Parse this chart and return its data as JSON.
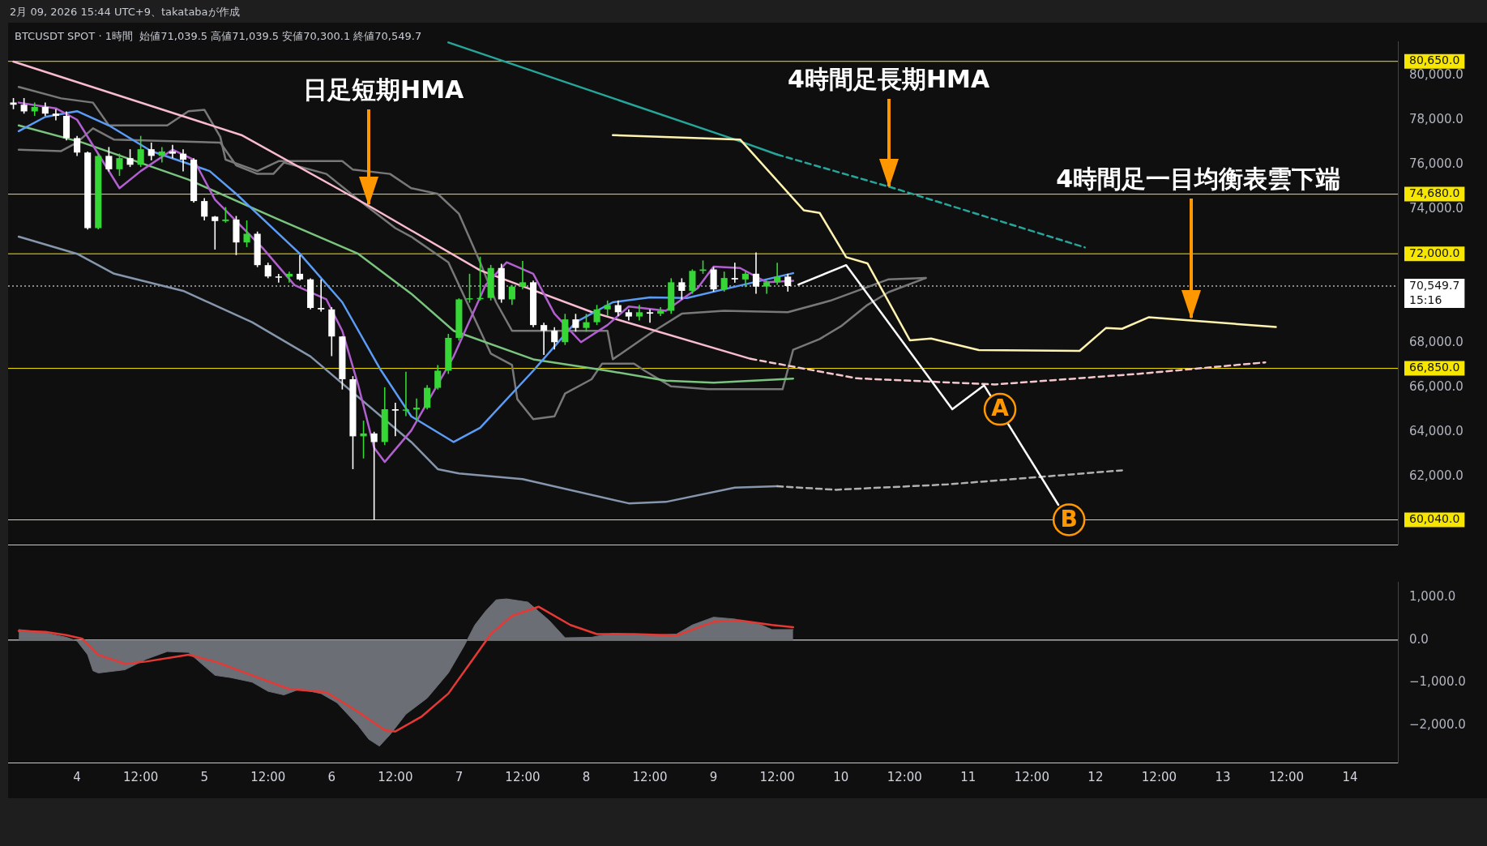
{
  "chart_data": [
    {
      "type": "candlestick",
      "title": "2月 09, 2026 15:44 UTC+9、takatabaが作成",
      "subtitle": "BTCUSDT SPOT · 1時間  始値71,039.5 高値71,039.5 安値70,300.1 終値70,549.7",
      "x": [
        "2026-02-03T12:00",
        "2026-02-03T14:00",
        "2026-02-03T16:00",
        "2026-02-03T18:00",
        "2026-02-03T20:00",
        "2026-02-03T22:00",
        "2026-02-04T00:00",
        "2026-02-04T02:00",
        "2026-02-04T04:00",
        "2026-02-04T06:00",
        "2026-02-04T08:00",
        "2026-02-04T10:00",
        "2026-02-04T12:00",
        "2026-02-04T14:00",
        "2026-02-04T16:00",
        "2026-02-04T18:00",
        "2026-02-04T20:00",
        "2026-02-04T22:00",
        "2026-02-05T00:00",
        "2026-02-05T02:00",
        "2026-02-05T04:00",
        "2026-02-05T06:00",
        "2026-02-05T08:00",
        "2026-02-05T10:00",
        "2026-02-05T12:00",
        "2026-02-05T14:00",
        "2026-02-05T16:00",
        "2026-02-05T18:00",
        "2026-02-05T20:00",
        "2026-02-05T22:00",
        "2026-02-06T00:00",
        "2026-02-06T02:00",
        "2026-02-06T04:00",
        "2026-02-06T06:00",
        "2026-02-06T08:00",
        "2026-02-06T10:00",
        "2026-02-06T12:00",
        "2026-02-06T14:00",
        "2026-02-06T16:00",
        "2026-02-06T18:00",
        "2026-02-06T20:00",
        "2026-02-06T22:00",
        "2026-02-07T00:00",
        "2026-02-07T02:00",
        "2026-02-07T04:00",
        "2026-02-07T06:00",
        "2026-02-07T08:00",
        "2026-02-07T10:00",
        "2026-02-07T12:00",
        "2026-02-07T14:00",
        "2026-02-07T16:00",
        "2026-02-07T18:00",
        "2026-02-07T20:00",
        "2026-02-07T22:00",
        "2026-02-08T00:00",
        "2026-02-08T02:00",
        "2026-02-08T04:00",
        "2026-02-08T06:00",
        "2026-02-08T08:00",
        "2026-02-08T10:00",
        "2026-02-08T12:00",
        "2026-02-08T14:00",
        "2026-02-08T16:00",
        "2026-02-08T18:00",
        "2026-02-08T20:00",
        "2026-02-08T22:00",
        "2026-02-09T00:00",
        "2026-02-09T02:00",
        "2026-02-09T04:00",
        "2026-02-09T06:00",
        "2026-02-09T08:00",
        "2026-02-09T10:00",
        "2026-02-09T12:00",
        "2026-02-09T14:00"
      ],
      "ohlc": [
        [
          78800,
          79000,
          78500,
          78700
        ],
        [
          78700,
          79000,
          78300,
          78400
        ],
        [
          78400,
          78800,
          78200,
          78600
        ],
        [
          78600,
          78800,
          78200,
          78300
        ],
        [
          78300,
          78500,
          78000,
          78200
        ],
        [
          78200,
          78400,
          77100,
          77200
        ],
        [
          77200,
          77300,
          76400,
          76550
        ],
        [
          76550,
          76600,
          73090,
          73150
        ],
        [
          73150,
          76500,
          73100,
          76400
        ],
        [
          76400,
          76800,
          75700,
          75800
        ],
        [
          75800,
          76500,
          75500,
          76300
        ],
        [
          76300,
          76700,
          75900,
          76000
        ],
        [
          76000,
          77300,
          75900,
          76700
        ],
        [
          76700,
          77000,
          76200,
          76400
        ],
        [
          76400,
          76800,
          76100,
          76600
        ],
        [
          76600,
          76900,
          76300,
          76500
        ],
        [
          76500,
          76700,
          75700,
          76230
        ],
        [
          76230,
          76300,
          74300,
          74370
        ],
        [
          74370,
          74500,
          73500,
          73670
        ],
        [
          73670,
          73700,
          72190,
          73470
        ],
        [
          73470,
          74100,
          73400,
          73540
        ],
        [
          73540,
          73700,
          71940,
          72510
        ],
        [
          72510,
          73500,
          72300,
          72900
        ],
        [
          72900,
          73000,
          71400,
          71490
        ],
        [
          71490,
          71600,
          70900,
          70980
        ],
        [
          70980,
          71100,
          70700,
          70975
        ],
        [
          70975,
          71200,
          70700,
          71100
        ],
        [
          71100,
          71940,
          70800,
          70850
        ],
        [
          70850,
          70900,
          69500,
          69565
        ],
        [
          69565,
          70850,
          69400,
          69500
        ],
        [
          69500,
          69600,
          67400,
          68283
        ],
        [
          68283,
          68300,
          65900,
          66360
        ],
        [
          66360,
          66500,
          62320,
          63796
        ],
        [
          63796,
          64500,
          62800,
          63924
        ],
        [
          63924,
          64000,
          60040,
          63539
        ],
        [
          63539,
          66000,
          63400,
          65014
        ],
        [
          65014,
          65300,
          63800,
          64950
        ],
        [
          64950,
          66700,
          64700,
          65000
        ],
        [
          65000,
          65500,
          64500,
          65080
        ],
        [
          65080,
          66100,
          65000,
          65975
        ],
        [
          65975,
          67000,
          65900,
          66744
        ],
        [
          66744,
          68400,
          66600,
          68220
        ],
        [
          68220,
          70000,
          68100,
          69950
        ],
        [
          69950,
          71100,
          69800,
          70000
        ],
        [
          70000,
          71870,
          69900,
          70014
        ],
        [
          70014,
          71500,
          69900,
          71360
        ],
        [
          71360,
          71550,
          69800,
          69950
        ],
        [
          69950,
          70600,
          69700,
          70526
        ],
        [
          70526,
          71680,
          70400,
          70719
        ],
        [
          70719,
          70800,
          68700,
          68796
        ],
        [
          68796,
          68900,
          67450,
          68539
        ],
        [
          68539,
          68700,
          67700,
          68027
        ],
        [
          68027,
          69300,
          67900,
          69052
        ],
        [
          69052,
          69300,
          68500,
          68667
        ],
        [
          68667,
          69300,
          68500,
          68924
        ],
        [
          68924,
          69700,
          68800,
          69501
        ],
        [
          69501,
          69900,
          69200,
          69693
        ],
        [
          69693,
          69900,
          69200,
          69373
        ],
        [
          69373,
          69500,
          69000,
          69180
        ],
        [
          69180,
          69700,
          69000,
          69373
        ],
        [
          69373,
          69500,
          68900,
          69308
        ],
        [
          69308,
          69600,
          69200,
          69437
        ],
        [
          69437,
          70900,
          69300,
          70719
        ],
        [
          70719,
          70900,
          69950,
          70334
        ],
        [
          70334,
          71300,
          70200,
          71231
        ],
        [
          71231,
          71700,
          71100,
          71296
        ],
        [
          71296,
          71400,
          70300,
          70398
        ],
        [
          70398,
          71200,
          70300,
          70911
        ],
        [
          70911,
          71600,
          70700,
          70847
        ],
        [
          70847,
          71200,
          70500,
          71103
        ],
        [
          71103,
          72060,
          70200,
          70526
        ],
        [
          70526,
          70800,
          70200,
          70719
        ],
        [
          70719,
          71600,
          70600,
          70975
        ],
        [
          70975,
          71100,
          70300,
          70550
        ]
      ],
      "colors": [
        "#ffffff",
        "#ffffff",
        "#36d636",
        "#ffffff",
        "#ffffff",
        "#ffffff",
        "#ffffff",
        "#ffffff",
        "#36d636",
        "#ffffff",
        "#36d636",
        "#ffffff",
        "#36d636",
        "#ffffff",
        "#36d636",
        "#ffffff",
        "#ffffff",
        "#ffffff",
        "#ffffff",
        "#ffffff",
        "#36d636",
        "#ffffff",
        "#36d636",
        "#ffffff",
        "#ffffff",
        "#ffffff",
        "#36d636",
        "#ffffff",
        "#ffffff",
        "#ffffff",
        "#ffffff",
        "#ffffff",
        "#ffffff",
        "#36d636",
        "#ffffff",
        "#36d636",
        "#ffffff",
        "#36d636",
        "#36d636",
        "#36d636",
        "#36d636",
        "#36d636",
        "#36d636",
        "#36d636",
        "#36d636",
        "#36d636",
        "#ffffff",
        "#36d636",
        "#36d636",
        "#ffffff",
        "#ffffff",
        "#ffffff",
        "#36d636",
        "#ffffff",
        "#36d636",
        "#36d636",
        "#36d636",
        "#ffffff",
        "#ffffff",
        "#36d636",
        "#ffffff",
        "#36d636",
        "#36d636",
        "#ffffff",
        "#36d636",
        "#36d636",
        "#ffffff",
        "#36d636",
        "#ffffff",
        "#36d636",
        "#ffffff",
        "#36d636",
        "#36d636",
        "#ffffff"
      ],
      "series": [
        {
          "type": "line",
          "color": "#787878",
          "x": [
            "2026-02-03T13:00",
            "2026-02-03T21:00",
            "2026-02-04T03:00",
            "2026-02-04T06:00",
            "2026-02-04T17:00",
            "2026-02-04T21:00",
            "2026-02-05T00:00",
            "2026-02-05T03:00",
            "2026-02-05T04:00",
            "2026-02-05T10:00",
            "2026-02-05T14:00",
            "2026-02-06T02:00",
            "2026-02-06T04:00",
            "2026-02-06T11:00",
            "2026-02-06T15:00",
            "2026-02-06T20:00",
            "2026-02-07T00:00",
            "2026-02-07T04:00",
            "2026-02-07T07:00",
            "2026-02-07T10:00",
            "2026-02-08T04:00",
            "2026-02-08T05:00",
            "2026-02-08T12:00",
            "2026-02-08T18:00",
            "2026-02-09T02:00",
            "2026-02-09T14:00",
            "2026-02-09T22:00",
            "2026-02-10T09:00",
            "2026-02-10T16:00"
          ],
          "values": [
            79500,
            78987,
            78795,
            77770,
            77770,
            78410,
            78475,
            77257,
            76231,
            75718,
            76167,
            76167,
            75782,
            75590,
            74949,
            74693,
            73795,
            71616,
            69821,
            68539,
            68539,
            67257,
            68411,
            69308,
            69437,
            69373,
            69892,
            70853,
            70911
          ]
        },
        {
          "type": "line",
          "color": "#787878",
          "x": [
            "2026-02-03T13:00",
            "2026-02-03T21:00",
            "2026-02-04T00:00",
            "2026-02-04T03:00",
            "2026-02-04T07:00",
            "2026-02-05T03:00",
            "2026-02-05T06:00",
            "2026-02-05T10:00",
            "2026-02-05T13:00",
            "2026-02-05T15:00",
            "2026-02-05T23:00",
            "2026-02-06T05:00",
            "2026-02-06T12:00",
            "2026-02-06T15:00",
            "2026-02-06T22:00",
            "2026-02-07T06:00",
            "2026-02-07T10:00",
            "2026-02-07T11:00",
            "2026-02-07T14:00",
            "2026-02-07T18:00",
            "2026-02-07T20:00",
            "2026-02-08T01:00",
            "2026-02-08T03:00",
            "2026-02-08T09:00",
            "2026-02-08T11:00",
            "2026-02-08T16:00",
            "2026-02-08T23:00",
            "2026-02-09T13:00",
            "2026-02-09T15:00",
            "2026-02-09T20:00",
            "2026-02-10T00:00",
            "2026-02-10T05:00",
            "2026-02-10T09:00",
            "2026-02-10T16:00"
          ],
          "values": [
            76680,
            76616,
            77000,
            77641,
            77129,
            77000,
            75975,
            75590,
            75590,
            76103,
            75590,
            74436,
            73154,
            72770,
            71616,
            67514,
            67001,
            65463,
            64565,
            64693,
            65719,
            66360,
            67065,
            67065,
            66744,
            66040,
            65911,
            65911,
            67683,
            68170,
            68740,
            69700,
            70277,
            70911
          ]
        },
        {
          "type": "line",
          "color": "#7bc47f",
          "x": [
            "2026-02-03T13:00",
            "2026-02-04T01:00",
            "2026-02-04T21:00",
            "2026-02-05T14:00",
            "2026-02-06T05:00",
            "2026-02-06T15:00",
            "2026-02-06T23:00",
            "2026-02-07T14:00",
            "2026-02-08T04:00",
            "2026-02-08T15:00",
            "2026-02-09T00:00",
            "2026-02-09T15:00"
          ],
          "values": [
            77770,
            77000,
            75334,
            73539,
            72000,
            70206,
            68539,
            67257,
            66744,
            66296,
            66206,
            66386
          ]
        },
        {
          "type": "line",
          "color": "#8596ad",
          "x": [
            "2026-02-03T13:00",
            "2026-02-04T00:00",
            "2026-02-04T07:00",
            "2026-02-04T20:00",
            "2026-02-05T09:00",
            "2026-02-05T20:00",
            "2026-02-06T15:00",
            "2026-02-06T20:00",
            "2026-02-07T00:00",
            "2026-02-07T12:00",
            "2026-02-08T08:00",
            "2026-02-08T15:00",
            "2026-02-09T04:00",
            "2026-02-09T12:00"
          ],
          "values": [
            72770,
            72000,
            71103,
            70334,
            68924,
            67386,
            63539,
            62321,
            62129,
            61873,
            60783,
            60847,
            61488,
            61552
          ]
        },
        {
          "type": "line",
          "color": "#b0b0b0",
          "line_style": "dashed",
          "x": [
            "2026-02-09T12:00",
            "2026-02-09T23:00",
            "2026-02-10T20:00",
            "2026-02-12T05:00"
          ],
          "values": [
            61552,
            61393,
            61631,
            62267
          ]
        },
        {
          "type": "line",
          "color": "#f8bbd0",
          "x": [
            "2026-02-03T12:00",
            "2026-02-05T07:00",
            "2026-02-06T07:00",
            "2026-02-07T04:00",
            "2026-02-08T01:00",
            "2026-02-09T07:00"
          ],
          "values": [
            80640,
            77336,
            74155,
            71253,
            69384,
            67277
          ]
        },
        {
          "type": "line",
          "color": "#f5c6cc",
          "line_style": "dashed",
          "x": [
            "2026-02-09T07:00",
            "2026-02-10T03:00",
            "2026-02-11T05:00",
            "2026-02-12T08:00",
            "2026-02-13T08:00"
          ],
          "values": [
            67277,
            66402,
            66124,
            66601,
            67118
          ]
        },
        {
          "type": "line",
          "color": "#26a69a",
          "x": [
            "2026-02-06T22:00",
            "2026-02-09T04:00",
            "2026-02-09T12:00"
          ],
          "values": [
            81500,
            77137,
            76461
          ]
        },
        {
          "type": "line",
          "color": "#26a69a",
          "line_style": "dashed",
          "x": [
            "2026-02-09T12:00",
            "2026-02-10T10:00",
            "2026-02-11T22:00"
          ],
          "values": [
            76461,
            74950,
            72286
          ]
        },
        {
          "type": "line",
          "color": "#fff3b0",
          "x": [
            "2026-02-08T05:00",
            "2026-02-09T05:00",
            "2026-02-09T17:00",
            "2026-02-09T20:00",
            "2026-02-10T01:00",
            "2026-02-10T05:00",
            "2026-02-10T13:00",
            "2026-02-10T17:00",
            "2026-02-11T02:00",
            "2026-02-11T21:00",
            "2026-02-12T02:00",
            "2026-02-12T05:00",
            "2026-02-12T10:00",
            "2026-02-12T19:00",
            "2026-02-13T10:00"
          ],
          "values": [
            77336,
            77137,
            73957,
            73837,
            71849,
            71571,
            68112,
            68191,
            67674,
            67635,
            68668,
            68628,
            69145,
            68986,
            68708
          ]
        },
        {
          "type": "line",
          "color": "#5b9cf6",
          "x": [
            "2026-02-03T13:00",
            "2026-02-03T18:00",
            "2026-02-04T00:00",
            "2026-02-04T06:00",
            "2026-02-04T14:00",
            "2026-02-05T01:00",
            "2026-02-05T06:00",
            "2026-02-05T18:00",
            "2026-02-06T02:00",
            "2026-02-06T09:00",
            "2026-02-06T15:00",
            "2026-02-06T23:00",
            "2026-02-07T04:00",
            "2026-02-07T14:00",
            "2026-02-07T22:00",
            "2026-02-08T05:00",
            "2026-02-08T12:00",
            "2026-02-08T19:00",
            "2026-02-09T03:00",
            "2026-02-09T15:00"
          ],
          "values": [
            77513,
            78154,
            78410,
            77770,
            76616,
            75718,
            74693,
            72000,
            69821,
            66872,
            64693,
            63539,
            64180,
            66744,
            68924,
            69821,
            70039,
            70014,
            70462,
            71129
          ]
        },
        {
          "type": "line",
          "color": "#b260d0",
          "x": [
            "2026-02-03T13:00",
            "2026-02-03T20:00",
            "2026-02-04T00:00",
            "2026-02-04T04:00",
            "2026-02-04T08:00",
            "2026-02-04T12:00",
            "2026-02-04T18:00",
            "2026-02-04T22:00",
            "2026-02-05T02:00",
            "2026-02-05T06:00",
            "2026-02-05T11:00",
            "2026-02-05T17:00",
            "2026-02-05T23:00",
            "2026-02-06T02:00",
            "2026-02-06T05:00",
            "2026-02-06T08:00",
            "2026-02-06T10:00",
            "2026-02-06T15:00",
            "2026-02-06T18:00",
            "2026-02-06T23:00",
            "2026-02-07T05:00",
            "2026-02-07T09:00",
            "2026-02-07T14:00",
            "2026-02-07T18:00",
            "2026-02-07T23:00",
            "2026-02-08T04:00",
            "2026-02-08T08:00",
            "2026-02-08T15:00",
            "2026-02-08T21:00",
            "2026-02-09T00:00",
            "2026-02-09T05:00",
            "2026-02-09T10:00",
            "2026-02-09T15:00"
          ],
          "values": [
            78795,
            78539,
            78026,
            null,
            74949,
            75718,
            76680,
            76231,
            74436,
            null,
            72257,
            70590,
            69950,
            68539,
            66104,
            63283,
            62642,
            64052,
            null,
            67386,
            70590,
            71616,
            71103,
            69308,
            68027,
            68796,
            69629,
            69437,
            70462,
            71424,
            71360,
            70719,
            70783
          ]
        },
        {
          "type": "line",
          "color": "#ffffff",
          "x": [
            "2026-02-09T16:00",
            "2026-02-10T01:00",
            "2026-02-10T21:00",
            "2026-02-11T03:00",
            "2026-02-11T17:00"
          ],
          "values": [
            70616,
            71491,
            65010,
            66084,
            60716
          ]
        }
      ],
      "xlim": [
        "2026-02-03T11:00",
        "2026-02-14T09:00"
      ],
      "xticks": [
        {
          "value": "2026-02-04T00:00",
          "label": "4"
        },
        {
          "value": "2026-02-04T12:00",
          "label": "12:00"
        },
        {
          "value": "2026-02-05T00:00",
          "label": "5"
        },
        {
          "value": "2026-02-05T12:00",
          "label": "12:00"
        },
        {
          "value": "2026-02-06T00:00",
          "label": "6"
        },
        {
          "value": "2026-02-06T12:00",
          "label": "12:00"
        },
        {
          "value": "2026-02-07T00:00",
          "label": "7"
        },
        {
          "value": "2026-02-07T12:00",
          "label": "12:00"
        },
        {
          "value": "2026-02-08T00:00",
          "label": "8"
        },
        {
          "value": "2026-02-08T12:00",
          "label": "12:00"
        },
        {
          "value": "2026-02-09T00:00",
          "label": "9"
        },
        {
          "value": "2026-02-09T12:00",
          "label": "12:00"
        },
        {
          "value": "2026-02-10T00:00",
          "label": "10"
        },
        {
          "value": "2026-02-10T12:00",
          "label": "12:00"
        },
        {
          "value": "2026-02-11T00:00",
          "label": "11"
        },
        {
          "value": "2026-02-11T12:00",
          "label": "12:00"
        },
        {
          "value": "2026-02-12T00:00",
          "label": "12"
        },
        {
          "value": "2026-02-12T12:00",
          "label": "12:00"
        },
        {
          "value": "2026-02-13T00:00",
          "label": "13"
        },
        {
          "value": "2026-02-13T12:00",
          "label": "12:00"
        },
        {
          "value": "2026-02-14T00:00",
          "label": "14"
        }
      ],
      "ylim": [
        58930,
        81550
      ],
      "yticks": [
        {
          "value": 62000,
          "label": "62,000.0"
        },
        {
          "value": 64000,
          "label": "64,000.0"
        },
        {
          "value": 66000,
          "label": "66,000.0"
        },
        {
          "value": 68000,
          "label": "68,000.0"
        },
        {
          "value": 74000,
          "label": "74,000.0"
        },
        {
          "value": 76000,
          "label": "76,000.0"
        },
        {
          "value": 78000,
          "label": "78,000.0"
        },
        {
          "value": 80000,
          "label": "80,000.0"
        }
      ],
      "tick_labels": "y",
      "ref_lines": [
        {
          "axis": "y",
          "value": 80650,
          "label": "80,650.0",
          "color": "#f7e600"
        },
        {
          "axis": "y",
          "value": 74680,
          "label": "74,680.0",
          "color": "#f7e600"
        },
        {
          "axis": "y",
          "value": 72000,
          "label": "72,000.0",
          "color": "#f7e600"
        },
        {
          "axis": "y",
          "value": 66850,
          "label": "66,850.0",
          "color": "#f7e600"
        },
        {
          "axis": "y",
          "value": 60040,
          "label": "60,040.0",
          "color": "#f7e600"
        },
        {
          "axis": "y",
          "value": 70549.7,
          "label": "70,549.7\n15:16",
          "color": "#ffffff",
          "line_style": "dotted"
        }
      ],
      "annotations": [
        {
          "text": "日足短期HMA",
          "x": "2026-02-06T07:00",
          "y": 74155
        },
        {
          "text": "4時間足長期HMA",
          "x": "2026-02-10T09:00",
          "y": 74950
        },
        {
          "text": "4時間足一目均衡表雲下端",
          "x": "2026-02-12T18:00",
          "y": 69066
        },
        {
          "text": "A",
          "x": "2026-02-11T06:00",
          "y": 65010
        },
        {
          "text": "B",
          "x": "2026-02-11T19:00",
          "y": 60040
        }
      ]
    },
    {
      "type": "area",
      "series": [
        {
          "type": "area",
          "color": "#6b6e75",
          "x": [
            "2026-02-03T13:00",
            "2026-02-03T17:00",
            "2026-02-03T22:00",
            "2026-02-04T00:00",
            "2026-02-04T02:00",
            "2026-02-04T03:00",
            "2026-02-04T04:00",
            "2026-02-04T09:00",
            "2026-02-04T13:00",
            "2026-02-04T17:00",
            "2026-02-04T21:00",
            "2026-02-05T02:00",
            "2026-02-05T05:00",
            "2026-02-05T09:00",
            "2026-02-05T12:00",
            "2026-02-05T15:00",
            "2026-02-05T18:00",
            "2026-02-05T22:00",
            "2026-02-06T01:00",
            "2026-02-06T05:00",
            "2026-02-06T07:00",
            "2026-02-06T09:00",
            "2026-02-06T11:00",
            "2026-02-06T14:00",
            "2026-02-06T18:00",
            "2026-02-06T22:00",
            "2026-02-07T01:00",
            "2026-02-07T03:00",
            "2026-02-07T05:00",
            "2026-02-07T07:00",
            "2026-02-07T09:00",
            "2026-02-07T13:00",
            "2026-02-07T17:00",
            "2026-02-07T20:00",
            "2026-02-08T01:00",
            "2026-02-08T05:00",
            "2026-02-08T12:00",
            "2026-02-08T17:00",
            "2026-02-08T20:00",
            "2026-02-09T00:00",
            "2026-02-09T04:00",
            "2026-02-09T09:00",
            "2026-02-09T11:00",
            "2026-02-09T15:00"
          ],
          "values": [
            247,
            194,
            65,
            -22,
            -344,
            -720,
            -774,
            -699,
            -452,
            -269,
            -290,
            -828,
            -882,
            -989,
            -1204,
            -1290,
            -1150,
            -1258,
            -1473,
            -2010,
            -2333,
            -2494,
            -2225,
            -1742,
            -1365,
            -774,
            -129,
            355,
            677,
            946,
            968,
            892,
            462,
            54,
            65,
            161,
            118,
            140,
            355,
            538,
            494,
            355,
            247,
            247
          ]
        },
        {
          "type": "line",
          "color": "#e53935",
          "x": [
            "2026-02-03T13:00",
            "2026-02-03T18:00",
            "2026-02-03T22:00",
            "2026-02-04T01:00",
            "2026-02-04T04:00",
            "2026-02-04T09:00",
            "2026-02-04T13:00",
            "2026-02-04T21:00",
            "2026-02-05T02:00",
            "2026-02-05T09:00",
            "2026-02-05T16:00",
            "2026-02-05T23:00",
            "2026-02-06T05:00",
            "2026-02-06T10:00",
            "2026-02-06T12:00",
            "2026-02-06T17:00",
            "2026-02-06T22:00",
            "2026-02-07T02:00",
            "2026-02-07T06:00",
            "2026-02-07T10:00",
            "2026-02-07T15:00",
            "2026-02-07T21:00",
            "2026-02-08T02:00",
            "2026-02-08T09:00",
            "2026-02-08T17:00",
            "2026-02-09T00:00",
            "2026-02-09T05:00",
            "2026-02-09T11:00",
            "2026-02-09T15:00"
          ],
          "values": [
            215,
            194,
            118,
            32,
            -344,
            -559,
            -505,
            -344,
            -505,
            -828,
            -1150,
            -1226,
            -1688,
            -2118,
            -2150,
            -1795,
            -1258,
            -559,
            140,
            570,
            785,
            355,
            140,
            140,
            108,
            430,
            462,
            355,
            301
          ]
        }
      ],
      "xlim": [
        "2026-02-03T11:00",
        "2026-02-14T09:00"
      ],
      "xticks": [
        {
          "value": "2026-02-04T00:00",
          "label": "4"
        },
        {
          "value": "2026-02-04T12:00",
          "label": "12:00"
        },
        {
          "value": "2026-02-05T00:00",
          "label": "5"
        },
        {
          "value": "2026-02-05T12:00",
          "label": "12:00"
        },
        {
          "value": "2026-02-06T00:00",
          "label": "6"
        },
        {
          "value": "2026-02-06T12:00",
          "label": "12:00"
        },
        {
          "value": "2026-02-07T00:00",
          "label": "7"
        },
        {
          "value": "2026-02-07T12:00",
          "label": "12:00"
        },
        {
          "value": "2026-02-08T00:00",
          "label": "8"
        },
        {
          "value": "2026-02-08T12:00",
          "label": "12:00"
        },
        {
          "value": "2026-02-09T00:00",
          "label": "9"
        },
        {
          "value": "2026-02-09T12:00",
          "label": "12:00"
        },
        {
          "value": "2026-02-10T00:00",
          "label": "10"
        },
        {
          "value": "2026-02-10T12:00",
          "label": "12:00"
        },
        {
          "value": "2026-02-11T00:00",
          "label": "11"
        },
        {
          "value": "2026-02-11T12:00",
          "label": "12:00"
        },
        {
          "value": "2026-02-12T00:00",
          "label": "12"
        },
        {
          "value": "2026-02-12T12:00",
          "label": "12:00"
        },
        {
          "value": "2026-02-13T00:00",
          "label": "13"
        },
        {
          "value": "2026-02-13T12:00",
          "label": "12:00"
        },
        {
          "value": "2026-02-14T00:00",
          "label": "14"
        }
      ],
      "ylim": [
        -2880,
        1370
      ],
      "yticks": [
        {
          "value": 1000,
          "label": "1,000.0"
        },
        {
          "value": 0,
          "label": "0.0"
        },
        {
          "value": -1000,
          "label": "−1,000.0"
        },
        {
          "value": -2000,
          "label": "−2,000.0"
        }
      ],
      "ref_lines": [
        {
          "axis": "y",
          "value": 0,
          "color": "#ffffff"
        }
      ]
    }
  ]
}
